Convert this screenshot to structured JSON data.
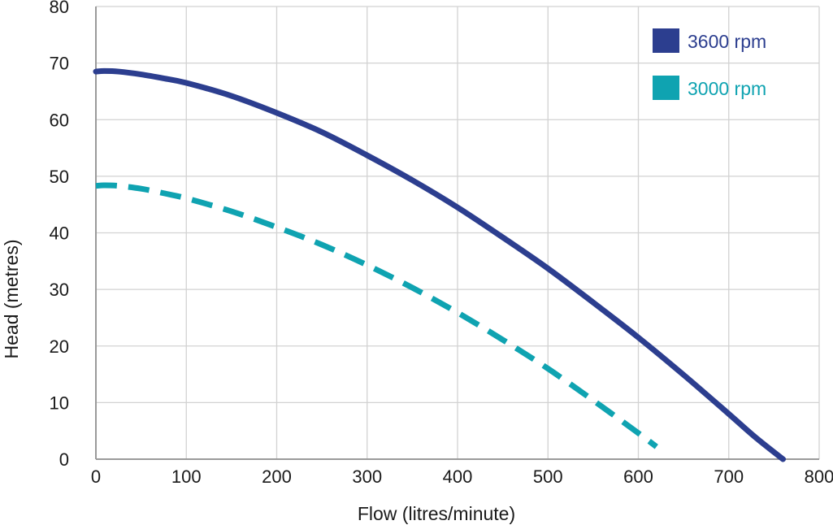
{
  "chart_data": {
    "type": "line",
    "title": "",
    "xlabel": "Flow (litres/minute)",
    "ylabel": "Head (metres)",
    "xlim": [
      0,
      800
    ],
    "ylim": [
      0,
      80
    ],
    "x_ticks": [
      0,
      100,
      200,
      300,
      400,
      500,
      600,
      700,
      800
    ],
    "y_ticks": [
      0,
      10,
      20,
      30,
      40,
      50,
      60,
      70,
      80
    ],
    "grid": true,
    "legend_position": "top-right",
    "series": [
      {
        "name": "3600 rpm",
        "color": "#2c3e8f",
        "style": "solid",
        "points": [
          [
            0,
            68.5
          ],
          [
            10,
            68.6
          ],
          [
            25,
            68.5
          ],
          [
            50,
            68.0
          ],
          [
            75,
            67.3
          ],
          [
            100,
            66.5
          ],
          [
            150,
            64.2
          ],
          [
            200,
            61.2
          ],
          [
            250,
            57.8
          ],
          [
            300,
            53.7
          ],
          [
            350,
            49.3
          ],
          [
            400,
            44.5
          ],
          [
            450,
            39.2
          ],
          [
            500,
            33.7
          ],
          [
            550,
            27.7
          ],
          [
            600,
            21.5
          ],
          [
            650,
            14.9
          ],
          [
            700,
            8.0
          ],
          [
            730,
            3.8
          ],
          [
            760,
            0.0
          ]
        ]
      },
      {
        "name": "3000 rpm",
        "color": "#0fa3b1",
        "style": "dashed",
        "points": [
          [
            0,
            48.3
          ],
          [
            10,
            48.4
          ],
          [
            25,
            48.3
          ],
          [
            50,
            47.8
          ],
          [
            75,
            47.0
          ],
          [
            100,
            46.1
          ],
          [
            150,
            43.8
          ],
          [
            200,
            41.0
          ],
          [
            250,
            37.9
          ],
          [
            300,
            34.3
          ],
          [
            350,
            30.3
          ],
          [
            400,
            25.9
          ],
          [
            450,
            21.1
          ],
          [
            500,
            16.0
          ],
          [
            550,
            10.4
          ],
          [
            600,
            4.6
          ],
          [
            620,
            2.2
          ]
        ]
      }
    ]
  }
}
